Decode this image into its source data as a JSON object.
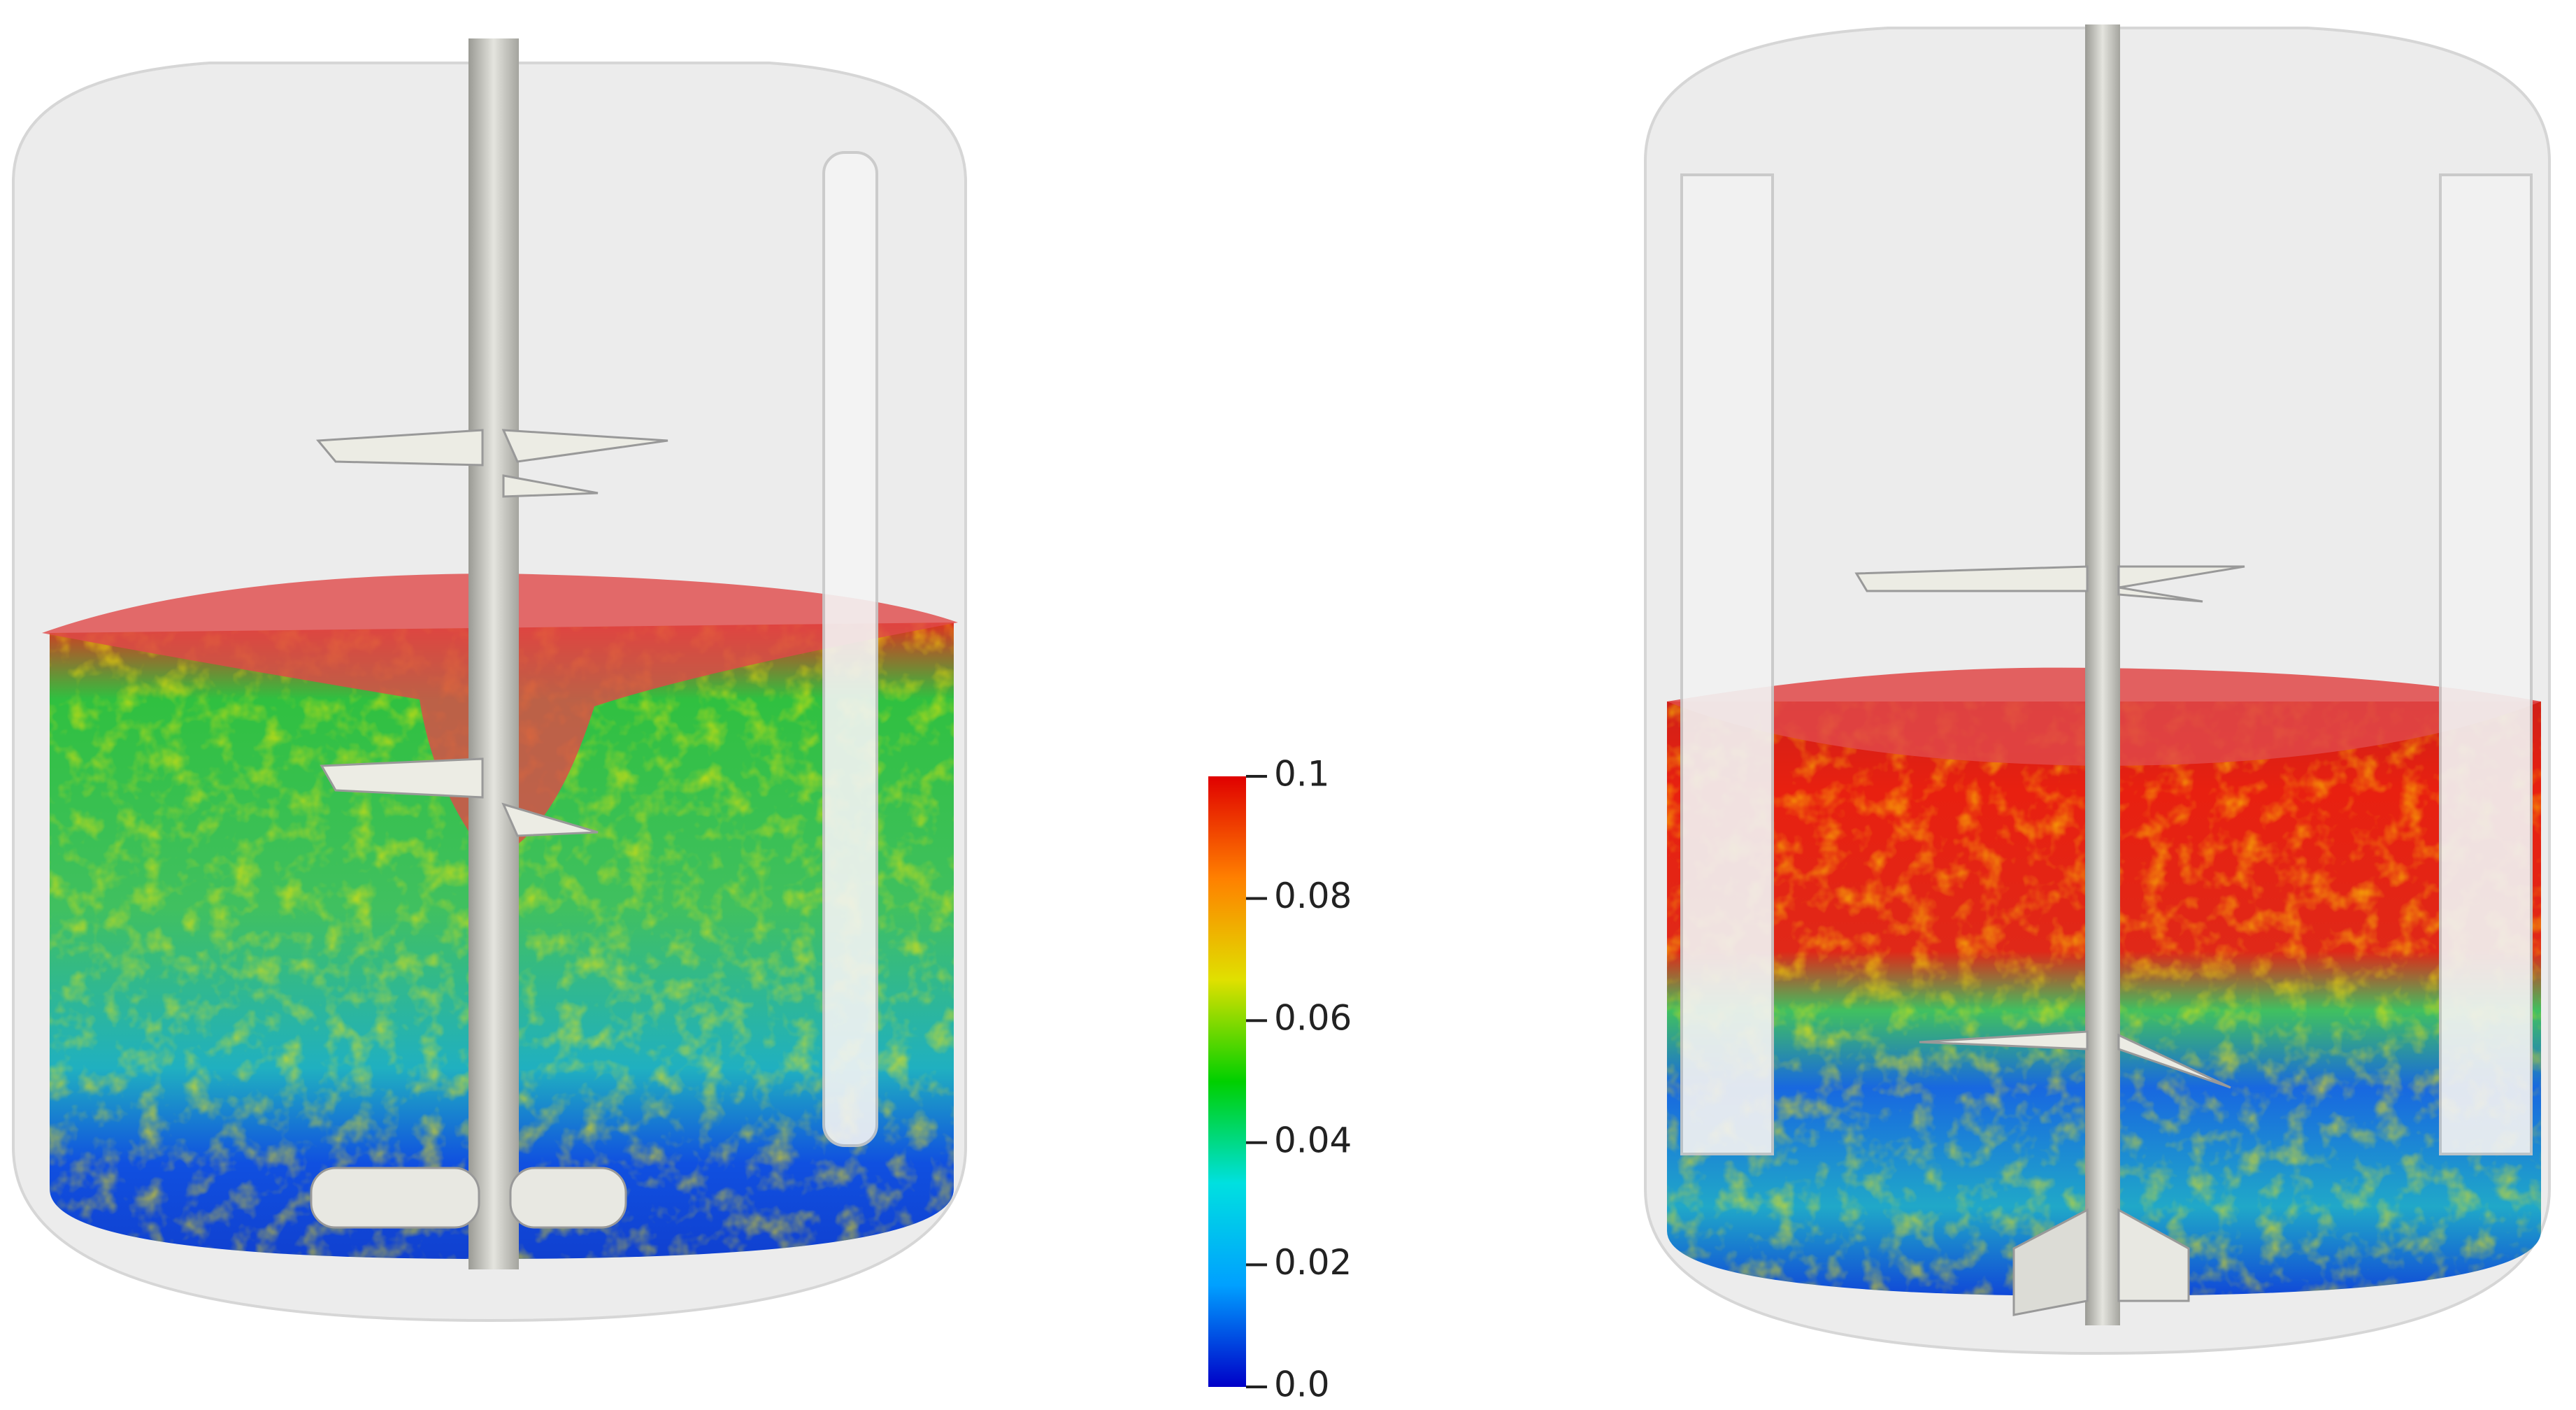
{
  "colorbar": {
    "range": [
      0,
      0.1
    ],
    "colors": [
      "#0000c8",
      "#00a0ff",
      "#00e0e0",
      "#00d000",
      "#e0e000",
      "#ff8000",
      "#e00000"
    ],
    "ticks": [
      {
        "value": 0,
        "label": "0.0"
      },
      0.02,
      0.04,
      0.06,
      0.08,
      0.1
    ]
  }
}
